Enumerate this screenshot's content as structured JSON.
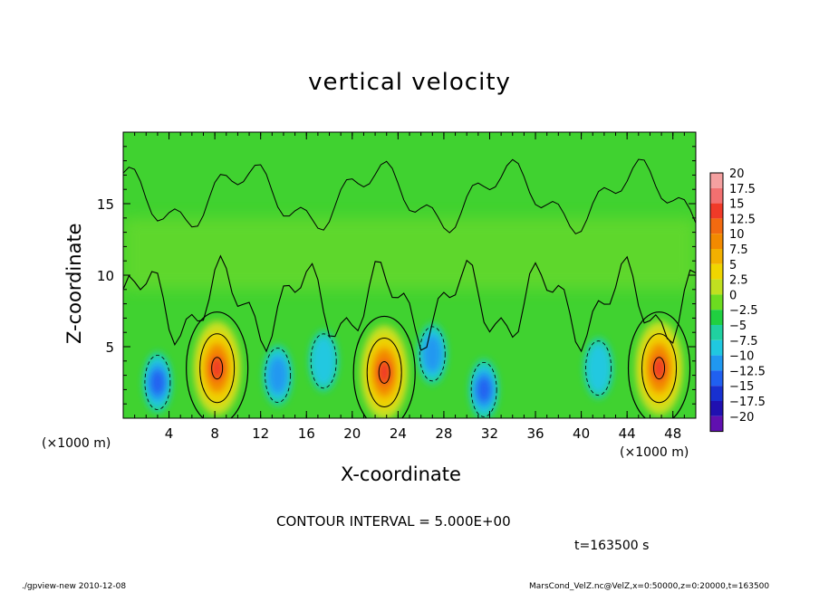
{
  "chart_data": {
    "type": "heatmap",
    "title": "vertical velocity",
    "xlabel": "X-coordinate",
    "ylabel": "Z-coordinate",
    "x_unit": "(×1000 m)",
    "y_unit": "(×1000 m)",
    "xlim": [
      0,
      50
    ],
    "ylim": [
      0,
      20
    ],
    "x_ticks": [
      "4",
      "8",
      "12",
      "16",
      "20",
      "24",
      "28",
      "32",
      "36",
      "40",
      "44",
      "48"
    ],
    "y_ticks": [
      "5",
      "10",
      "15"
    ],
    "colorbar": {
      "levels": [
        "20",
        "17.5",
        "15",
        "12.5",
        "10",
        "7.5",
        "5",
        "2.5",
        "0",
        "−2.5",
        "−5",
        "−7.5",
        "−10",
        "−12.5",
        "−15",
        "−17.5",
        "−20"
      ],
      "colors": [
        "#f5a0a0",
        "#f27070",
        "#f03a28",
        "#f26a10",
        "#f28a00",
        "#f2b000",
        "#f0d600",
        "#c0e020",
        "#6cdc20",
        "#20d040",
        "#20d0a0",
        "#20c8e0",
        "#2098f0",
        "#2060f0",
        "#1830d0",
        "#2010b0",
        "#6010b0"
      ]
    },
    "features": [
      {
        "x": 8.2,
        "z": 3.5,
        "max": 12.5,
        "sign": "up"
      },
      {
        "x": 22.8,
        "z": 3.2,
        "max": 12.5,
        "sign": "up"
      },
      {
        "x": 46.8,
        "z": 3.5,
        "max": 12.5,
        "sign": "up"
      },
      {
        "x": 3.0,
        "z": 2.5,
        "min": -10,
        "sign": "down"
      },
      {
        "x": 13.5,
        "z": 3.0,
        "min": -7.5,
        "sign": "down"
      },
      {
        "x": 17.5,
        "z": 4.0,
        "min": -5,
        "sign": "down"
      },
      {
        "x": 27.0,
        "z": 4.5,
        "min": -7.5,
        "sign": "down"
      },
      {
        "x": 31.5,
        "z": 2.0,
        "min": -10,
        "sign": "down"
      },
      {
        "x": 41.5,
        "z": 3.5,
        "min": -5,
        "sign": "down"
      }
    ]
  },
  "contour_interval": "CONTOUR INTERVAL = 5.000E+00",
  "time_label": "t=163500 s",
  "footer_left": "./gpview-new  2010-12-08",
  "footer_right": "MarsCond_VelZ.nc@VelZ,x=0:50000,z=0:20000,t=163500"
}
